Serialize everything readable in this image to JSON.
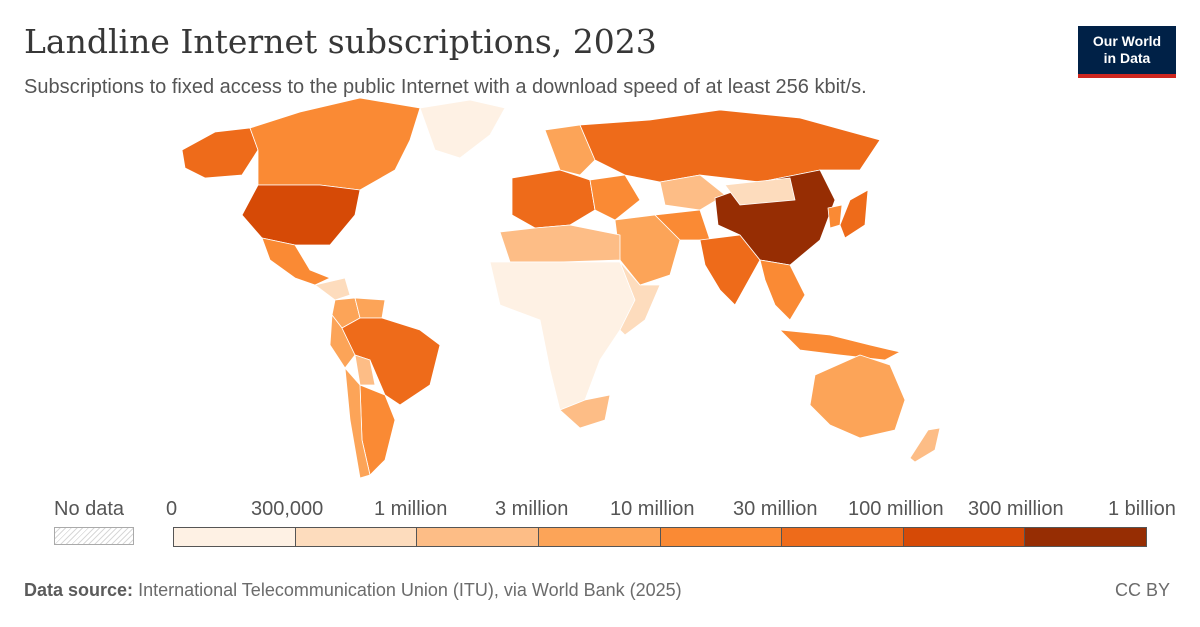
{
  "header": {
    "title": "Landline Internet subscriptions, 2023",
    "subtitle": "Subscriptions to fixed access to the public Internet with a download speed of at least 256 kbit/s."
  },
  "logo": {
    "line1": "Our World",
    "line2": "in Data"
  },
  "legend": {
    "nodata_label": "No data",
    "bins": [
      {
        "label": "0",
        "color": "#fef1e4"
      },
      {
        "label": "300,000",
        "color": "#fddcbd"
      },
      {
        "label": "1 million",
        "color": "#fdbd86"
      },
      {
        "label": "3 million",
        "color": "#fca458"
      },
      {
        "label": "10 million",
        "color": "#fa8a34"
      },
      {
        "label": "30 million",
        "color": "#ee6b1a"
      },
      {
        "label": "100 million",
        "color": "#d64a06"
      },
      {
        "label": "300 million",
        "color": "#962d03"
      }
    ],
    "last_label": "1 billion"
  },
  "map": {
    "regions": [
      {
        "name": "Canada",
        "bin": 4
      },
      {
        "name": "Alaska",
        "bin": 5
      },
      {
        "name": "United States",
        "bin": 6
      },
      {
        "name": "Greenland",
        "bin": 0
      },
      {
        "name": "Mexico",
        "bin": 4
      },
      {
        "name": "Central America",
        "bin": 1
      },
      {
        "name": "Colombia",
        "bin": 3
      },
      {
        "name": "Venezuela",
        "bin": 3
      },
      {
        "name": "Peru",
        "bin": 3
      },
      {
        "name": "Brazil",
        "bin": 5
      },
      {
        "name": "Bolivia",
        "bin": 2
      },
      {
        "name": "Argentina",
        "bin": 4
      },
      {
        "name": "Chile",
        "bin": 3
      },
      {
        "name": "Europe West",
        "bin": 5
      },
      {
        "name": "Scandinavia",
        "bin": 3
      },
      {
        "name": "Eastern Europe",
        "bin": 4
      },
      {
        "name": "Russia",
        "bin": 5
      },
      {
        "name": "Kazakhstan",
        "bin": 2
      },
      {
        "name": "Middle East",
        "bin": 3
      },
      {
        "name": "Iran",
        "bin": 4
      },
      {
        "name": "North Africa",
        "bin": 2
      },
      {
        "name": "Sub-Saharan Africa",
        "bin": 0
      },
      {
        "name": "East Africa",
        "bin": 1
      },
      {
        "name": "South Africa",
        "bin": 2
      },
      {
        "name": "India",
        "bin": 5
      },
      {
        "name": "China",
        "bin": 7
      },
      {
        "name": "Mongolia",
        "bin": 1
      },
      {
        "name": "Japan",
        "bin": 5
      },
      {
        "name": "Korea",
        "bin": 4
      },
      {
        "name": "Southeast Asia",
        "bin": 4
      },
      {
        "name": "Indonesia",
        "bin": 4
      },
      {
        "name": "Australia",
        "bin": 3
      },
      {
        "name": "New Zealand",
        "bin": 2
      }
    ]
  },
  "footer": {
    "source_label": "Data source:",
    "source_text": "International Telecommunication Union (ITU), via World Bank (2025)",
    "license": "CC BY"
  }
}
